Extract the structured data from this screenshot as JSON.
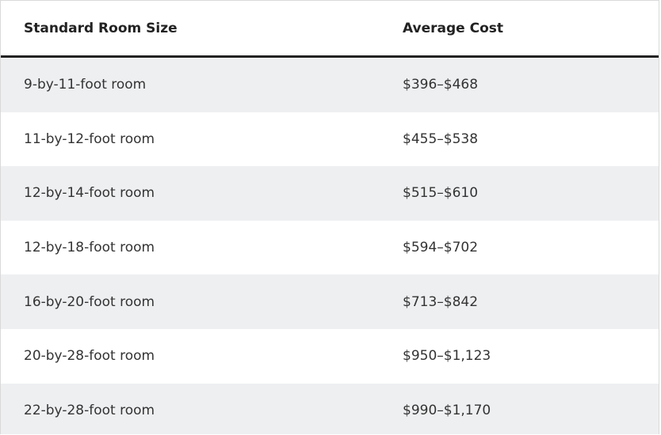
{
  "table": {
    "header": [
      "Standard Room Size",
      "Average Cost"
    ],
    "rows": [
      [
        "9-by-11-foot room",
        "$396–$468"
      ],
      [
        "11-by-12-foot room",
        "$455–$538"
      ],
      [
        "12-by-14-foot room",
        "$515–$610"
      ],
      [
        "12-by-18-foot room",
        "$594–$702"
      ],
      [
        "16-by-20-foot room",
        "$713–$842"
      ],
      [
        "20-by-28-foot room",
        "$950–$1,123"
      ],
      [
        "22-by-28-foot room",
        "$990–$1,170"
      ]
    ]
  }
}
